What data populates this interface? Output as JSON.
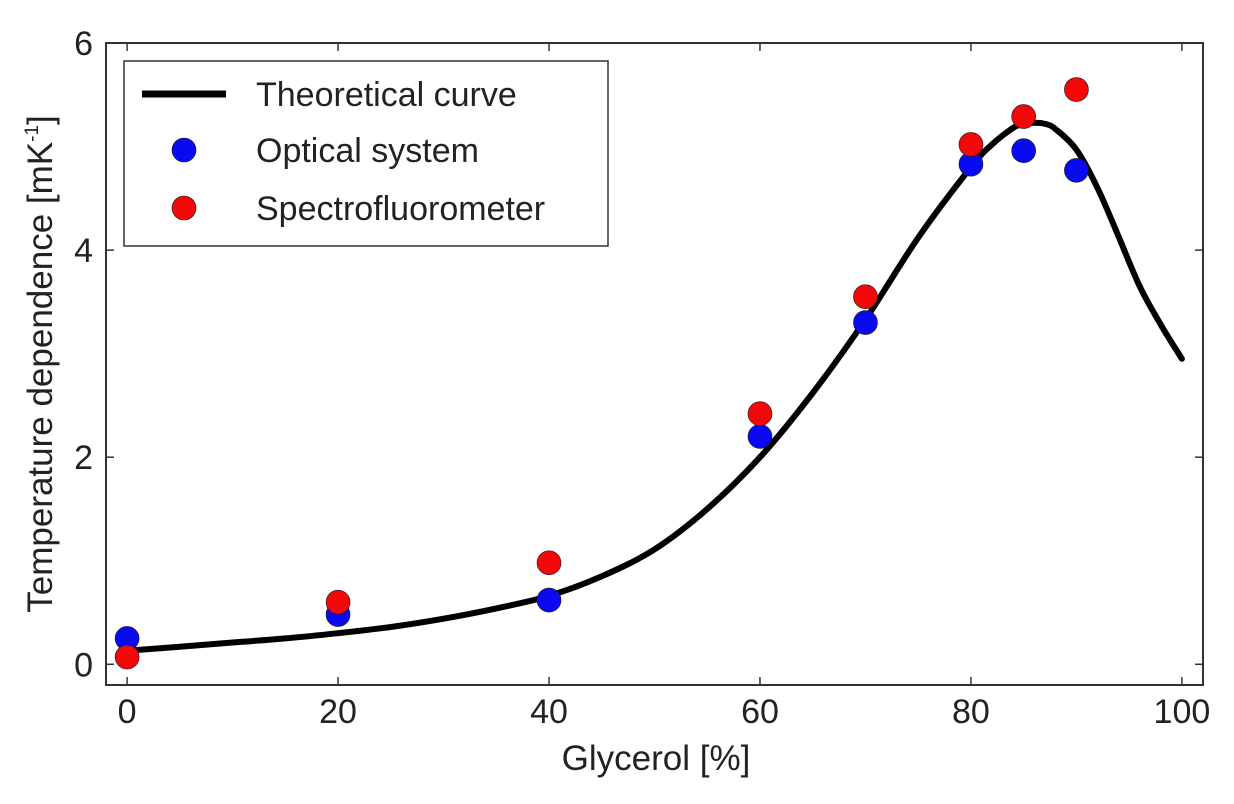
{
  "chart_data": {
    "type": "scatter",
    "title": "",
    "xlabel": "Glycerol [%]",
    "ylabel": {
      "main": "Temperature dependence [mK",
      "superscript": "-1",
      "close": "]"
    },
    "xlim": [
      -2,
      102
    ],
    "ylim": [
      -0.2,
      6
    ],
    "xticks": [
      0,
      20,
      40,
      60,
      80,
      100
    ],
    "yticks": [
      0,
      2,
      4,
      6
    ],
    "grid": false,
    "legend_position": "top-left",
    "series": [
      {
        "name": "Theoretical curve",
        "kind": "line",
        "color": "#000000",
        "x": [
          0,
          5,
          10,
          15,
          20,
          25,
          30,
          35,
          40,
          45,
          50,
          55,
          60,
          65,
          70,
          75,
          80,
          82,
          84,
          85,
          86,
          87,
          88,
          90,
          92,
          94,
          96,
          98,
          100
        ],
        "y": [
          0.13,
          0.17,
          0.21,
          0.25,
          0.3,
          0.36,
          0.44,
          0.54,
          0.66,
          0.85,
          1.11,
          1.5,
          2.0,
          2.62,
          3.33,
          4.12,
          4.8,
          5.02,
          5.18,
          5.22,
          5.23,
          5.22,
          5.17,
          4.97,
          4.6,
          4.13,
          3.65,
          3.28,
          2.95
        ]
      },
      {
        "name": "Optical system",
        "kind": "scatter",
        "color": "#0a0af0",
        "x": [
          0,
          20,
          40,
          60,
          70,
          80,
          85,
          90
        ],
        "y": [
          0.25,
          0.48,
          0.62,
          2.2,
          3.3,
          4.83,
          4.96,
          4.77
        ]
      },
      {
        "name": "Spectrofluorometer",
        "kind": "scatter",
        "color": "#f20808",
        "x": [
          0,
          20,
          40,
          60,
          70,
          80,
          85,
          90
        ],
        "y": [
          0.07,
          0.6,
          0.98,
          2.42,
          3.55,
          5.02,
          5.29,
          5.55
        ]
      }
    ]
  }
}
